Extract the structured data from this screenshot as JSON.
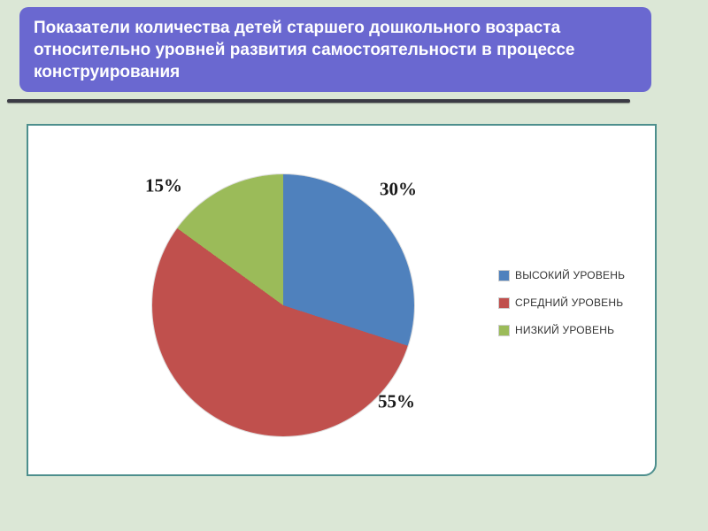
{
  "slide": {
    "title": "Показатели количества детей старшего дошкольного возраста относительно уровней развития самостоятельности в процессе конструирования"
  },
  "chart_data": {
    "type": "pie",
    "title": "",
    "labels": [
      "ВЫСОКИЙ УРОВЕНЬ",
      "СРЕДНИЙ УРОВЕНЬ",
      "НИЗКИЙ УРОВЕНЬ"
    ],
    "values": [
      30,
      55,
      15
    ],
    "unit": "%",
    "data_labels": [
      "30%",
      "55%",
      "15%"
    ],
    "colors": [
      "#4F81BD",
      "#C0504D",
      "#9BBB59"
    ],
    "start_angle_deg": 0,
    "direction": "clockwise",
    "legend_position": "right",
    "accent_colors": {
      "slide_background": "#dbe7d6",
      "title_banner": "#6a68d0",
      "panel_border": "#4d8f8d",
      "underline": "#3b3b45"
    }
  }
}
